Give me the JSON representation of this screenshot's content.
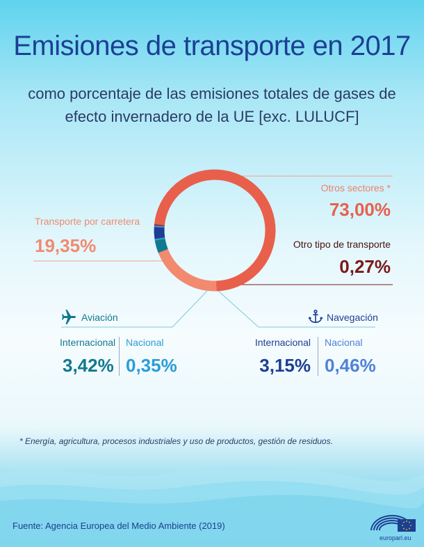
{
  "title": "Emisiones de transporte en 2017",
  "subtitle_line1": "como porcentaje de las emisiones totales de gases de",
  "subtitle_line2": "efecto invernadero de la UE [exc. LULUCF]",
  "labels": {
    "otros_sectores": "Otros sectores *",
    "otros_sectores_value": "73,00%",
    "otro_transporte": "Otro tipo de transporte",
    "otro_transporte_value": "0,27%",
    "carretera": "Transporte por carretera",
    "carretera_value": "19,35%",
    "aviacion": "Aviación",
    "navegacion": "Navegación",
    "aviacion_internacional": "Internacional",
    "aviacion_internacional_value": "3,42%",
    "aviacion_nacional": "Nacional",
    "aviacion_nacional_value": "0,35%",
    "navegacion_internacional": "Internacional",
    "navegacion_internacional_value": "3,15%",
    "navegacion_nacional": "Nacional",
    "navegacion_nacional_value": "0,46%"
  },
  "footnote": "* Energía, agricultura, procesos industriales y uso de productos, gestión de residuos.",
  "source": "Fuente: Agencia Europea del Medio Ambiente (2019)",
  "brand": "europarl.eu",
  "icons": [
    "airplane-icon",
    "anchor-icon",
    "eu-parliament-logo"
  ],
  "colors": {
    "otros_sectores": "#e8604c",
    "carretera": "#f28a70",
    "aviacion_internacional": "#12788f",
    "aviacion_nacional": "#2a9dd8",
    "navegacion_internacional": "#1c3f93",
    "navegacion_nacional": "#4f82d6",
    "otro_transporte": "#7a1a1a"
  },
  "chart_data": {
    "type": "pie",
    "variant": "donut",
    "title": "Emisiones de transporte en 2017",
    "subtitle": "como porcentaje de las emisiones totales de gases de efecto invernadero de la UE [exc. LULUCF]",
    "unit": "%",
    "series": [
      {
        "name": "Otros sectores *",
        "value": 73.0
      },
      {
        "name": "Otro tipo de transporte",
        "value": 0.27
      },
      {
        "name": "Navegación Nacional",
        "value": 0.46
      },
      {
        "name": "Navegación Internacional",
        "value": 3.15
      },
      {
        "name": "Aviación Nacional",
        "value": 0.35
      },
      {
        "name": "Aviación Internacional",
        "value": 3.42
      },
      {
        "name": "Transporte por carretera",
        "value": 19.35
      }
    ]
  }
}
